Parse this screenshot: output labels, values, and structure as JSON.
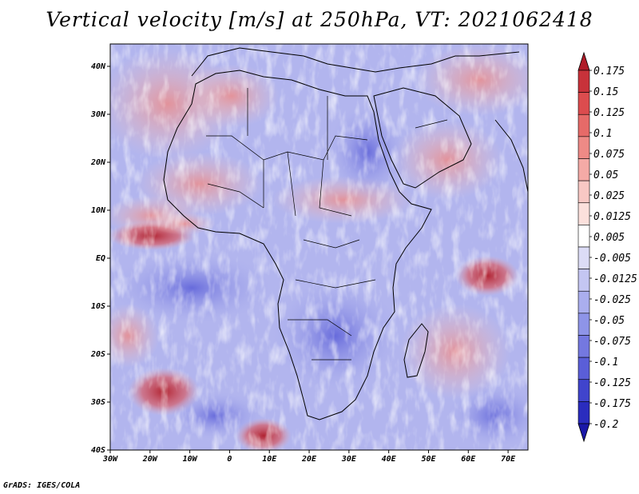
{
  "title": "Vertical velocity [m/s] at 250hPa, VT: 2021062418",
  "credit": "GrADS: IGES/COLA",
  "map": {
    "lon_labels": [
      "30W",
      "20W",
      "10W",
      "0",
      "10E",
      "20E",
      "30E",
      "40E",
      "50E",
      "60E",
      "70E"
    ],
    "lat_labels": [
      "40N",
      "30N",
      "20N",
      "10N",
      "EQ",
      "10S",
      "20S",
      "30S",
      "40S"
    ]
  },
  "colorbar": {
    "labels": [
      "0.175",
      "0.15",
      "0.125",
      "0.1",
      "0.075",
      "0.05",
      "0.025",
      "0.0125",
      "0.005",
      "-0.005",
      "-0.0125",
      "-0.025",
      "-0.05",
      "-0.075",
      "-0.1",
      "-0.125",
      "-0.175",
      "-0.2"
    ],
    "colors": [
      "#b01c28",
      "#c8323a",
      "#dc4c4e",
      "#e66a68",
      "#ee8a86",
      "#f4aaa6",
      "#f8c8c4",
      "#fbe0dc",
      "#ffffff",
      "#dcdcf6",
      "#c4c6f2",
      "#aaaeee",
      "#8e94e8",
      "#7478e0",
      "#5a5ed8",
      "#4044cc",
      "#2a2cbe",
      "#1a18a8"
    ]
  }
}
